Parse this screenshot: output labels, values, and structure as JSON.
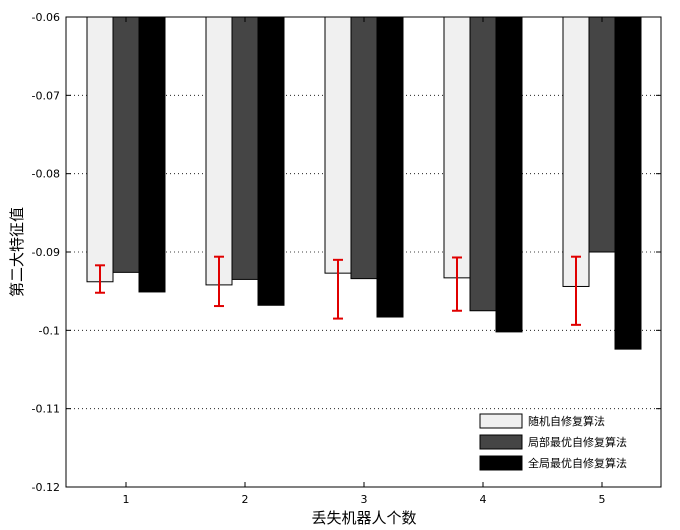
{
  "chart_data": {
    "type": "bar",
    "xlabel": "丢失机器人个数",
    "ylabel": "第二大特征值",
    "categories": [
      "1",
      "2",
      "3",
      "4",
      "5"
    ],
    "ylim": [
      -0.12,
      -0.06
    ],
    "yticks": [
      -0.12,
      -0.11,
      -0.1,
      -0.09,
      -0.08,
      -0.07,
      -0.06
    ],
    "ytick_labels": [
      "-0.12",
      "-0.11",
      "-0.1",
      "-0.09",
      "-0.08",
      "-0.07",
      "-0.06"
    ],
    "grid": "horizontal dotted",
    "legend_position": "bottom-right",
    "series": [
      {
        "name": "随机自修复算法",
        "color": "#f0f0f0",
        "values": [
          -0.0938,
          -0.0942,
          -0.0927,
          -0.0933,
          -0.0944
        ],
        "error_low": [
          -0.0952,
          -0.0969,
          -0.0985,
          -0.0975,
          -0.0993
        ],
        "error_high": [
          -0.0917,
          -0.0906,
          -0.091,
          -0.0907,
          -0.0906
        ],
        "error_color": "#e00000"
      },
      {
        "name": "局部最优自修复算法",
        "color": "#454545",
        "values": [
          -0.0926,
          -0.0935,
          -0.0934,
          -0.0975,
          -0.09
        ]
      },
      {
        "name": "全局最优自修复算法",
        "color": "#000000",
        "values": [
          -0.0951,
          -0.0968,
          -0.0983,
          -0.1002,
          -0.1024
        ]
      }
    ]
  }
}
